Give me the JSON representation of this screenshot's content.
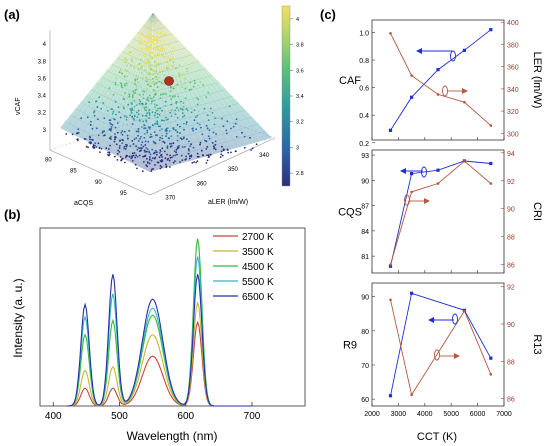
{
  "panel_labels": {
    "a": "(a)",
    "b": "(b)",
    "c": "(c)"
  },
  "colors": {
    "blue": "#1f2fd0",
    "red": "#b5583f",
    "red_axis": "#9a3b2e",
    "dot_marker": "#b0321e"
  },
  "chart_data": [
    {
      "id": "a",
      "type": "scatter",
      "subtype": "3d-surface-with-points",
      "axis_labels": {
        "x": "aCQS",
        "y": "aLER (lm/W)",
        "z": "vCAF"
      },
      "x_ticks": [
        "80",
        "85",
        "90",
        "95"
      ],
      "y_ticks": [
        "370",
        "360",
        "350",
        "340"
      ],
      "z_ticks": [
        "3",
        "3.2",
        "3.4",
        "3.6",
        "3.8",
        "4"
      ],
      "z_range": [
        2.8,
        4.2
      ],
      "colorbar": {
        "ticks": [
          "2.8",
          "3",
          "3.2",
          "3.4",
          "3.6",
          "3.8",
          "4"
        ],
        "range": [
          2.7,
          4.1
        ],
        "colors": [
          "#2c2f7a",
          "#2c63a8",
          "#2f9ea0",
          "#5dc07a",
          "#b6d66a",
          "#f2e05a"
        ]
      },
      "highlight_point": {
        "x": 88,
        "y": 358,
        "z": 3.78
      }
    },
    {
      "id": "b",
      "type": "line",
      "xlabel": "Wavelength (nm)",
      "ylabel": "Intensity (a. u.)",
      "xlim": [
        380,
        780
      ],
      "x_ticks": [
        400,
        500,
        600,
        700
      ],
      "series": [
        {
          "name": "2700 K",
          "color": "#c0483a",
          "peaks": [
            [
              448,
              0.1
            ],
            [
              490,
              0.1
            ],
            [
              550,
              0.28
            ],
            [
              618,
              0.47
            ]
          ]
        },
        {
          "name": "3500 K",
          "color": "#c9b437",
          "peaks": [
            [
              448,
              0.2
            ],
            [
              490,
              0.22
            ],
            [
              550,
              0.4
            ],
            [
              618,
              0.58
            ]
          ]
        },
        {
          "name": "4500 K",
          "color": "#34ba3a",
          "peaks": [
            [
              448,
              0.4
            ],
            [
              490,
              0.48
            ],
            [
              550,
              0.51
            ],
            [
              618,
              0.94
            ]
          ]
        },
        {
          "name": "5500 K",
          "color": "#33b8c8",
          "peaks": [
            [
              448,
              0.5
            ],
            [
              490,
              0.63
            ],
            [
              550,
              0.55
            ],
            [
              618,
              0.84
            ]
          ]
        },
        {
          "name": "6500 K",
          "color": "#2530a8",
          "peaks": [
            [
              448,
              0.57
            ],
            [
              490,
              0.74
            ],
            [
              550,
              0.6
            ],
            [
              618,
              0.74
            ]
          ]
        }
      ]
    },
    {
      "id": "c1",
      "type": "line",
      "x": [
        2700,
        3500,
        4500,
        5500,
        6500
      ],
      "xlim": [
        2000,
        7000
      ],
      "series": [
        {
          "name": "CAF",
          "axis": "left",
          "color": "#1f2fd0",
          "values": [
            0.29,
            0.53,
            0.73,
            0.87,
            1.02
          ]
        },
        {
          "name": "LER",
          "axis": "right",
          "color": "#b5583f",
          "values": [
            390,
            352,
            335,
            328,
            307
          ]
        }
      ],
      "left": {
        "label": "CAF",
        "ylim": [
          0.22,
          1.09
        ],
        "ticks": [
          "0.2",
          "0.4",
          "0.6",
          "0.8",
          "1.0"
        ],
        "tick_values": [
          0.2,
          0.4,
          0.6,
          0.8,
          1.0
        ]
      },
      "right": {
        "label": "LER (lm/W)",
        "ylim": [
          294,
          402
        ],
        "ticks": [
          "300",
          "320",
          "340",
          "360",
          "380",
          "400"
        ],
        "tick_values": [
          300,
          320,
          340,
          360,
          380,
          400
        ]
      }
    },
    {
      "id": "c2",
      "type": "line",
      "x": [
        2700,
        3500,
        4500,
        5500,
        6500
      ],
      "xlim": [
        2000,
        7000
      ],
      "series": [
        {
          "name": "CQS",
          "axis": "left",
          "color": "#1f2fd0",
          "values": [
            79.8,
            90.8,
            91.2,
            92.3,
            92.0
          ]
        },
        {
          "name": "CRI",
          "axis": "right",
          "color": "#b5583f",
          "values": [
            86.0,
            91.2,
            91.8,
            93.4,
            91.8
          ]
        }
      ],
      "left": {
        "label": "CQS",
        "ylim": [
          79.0,
          93.6
        ],
        "ticks": [
          "81",
          "84",
          "87",
          "90",
          "93"
        ],
        "tick_values": [
          81,
          84,
          87,
          90,
          93
        ]
      },
      "right": {
        "label": "CRI",
        "ylim": [
          85.4,
          94.2
        ],
        "ticks": [
          "86",
          "88",
          "90",
          "92",
          "94"
        ],
        "tick_values": [
          86,
          88,
          90,
          92,
          94
        ]
      }
    },
    {
      "id": "c3",
      "type": "line",
      "xlabel": "CCT (K)",
      "x": [
        2700,
        3500,
        5500,
        6500
      ],
      "x_ticks": [
        "2000",
        "3000",
        "4000",
        "5000",
        "6000",
        "7000"
      ],
      "xlim": [
        2000,
        7000
      ],
      "series": [
        {
          "name": "R9",
          "axis": "left",
          "color": "#1f2fd0",
          "x": [
            2700,
            3500,
            5500,
            6500
          ],
          "values": [
            61,
            91,
            86,
            72
          ]
        },
        {
          "name": "R13",
          "axis": "right",
          "color": "#b5583f",
          "x": [
            2700,
            3500,
            5500,
            6500
          ],
          "values": [
            91.3,
            86.2,
            90.7,
            87.3
          ]
        }
      ],
      "left": {
        "label": "R9",
        "ylim": [
          58,
          94
        ],
        "ticks": [
          "60",
          "70",
          "80",
          "90"
        ],
        "tick_values": [
          60,
          70,
          80,
          90
        ]
      },
      "right": {
        "label": "R13",
        "ylim": [
          85.6,
          92.2
        ],
        "ticks": [
          "86",
          "88",
          "90",
          "92"
        ],
        "tick_values": [
          86,
          88,
          90,
          92
        ]
      }
    }
  ]
}
